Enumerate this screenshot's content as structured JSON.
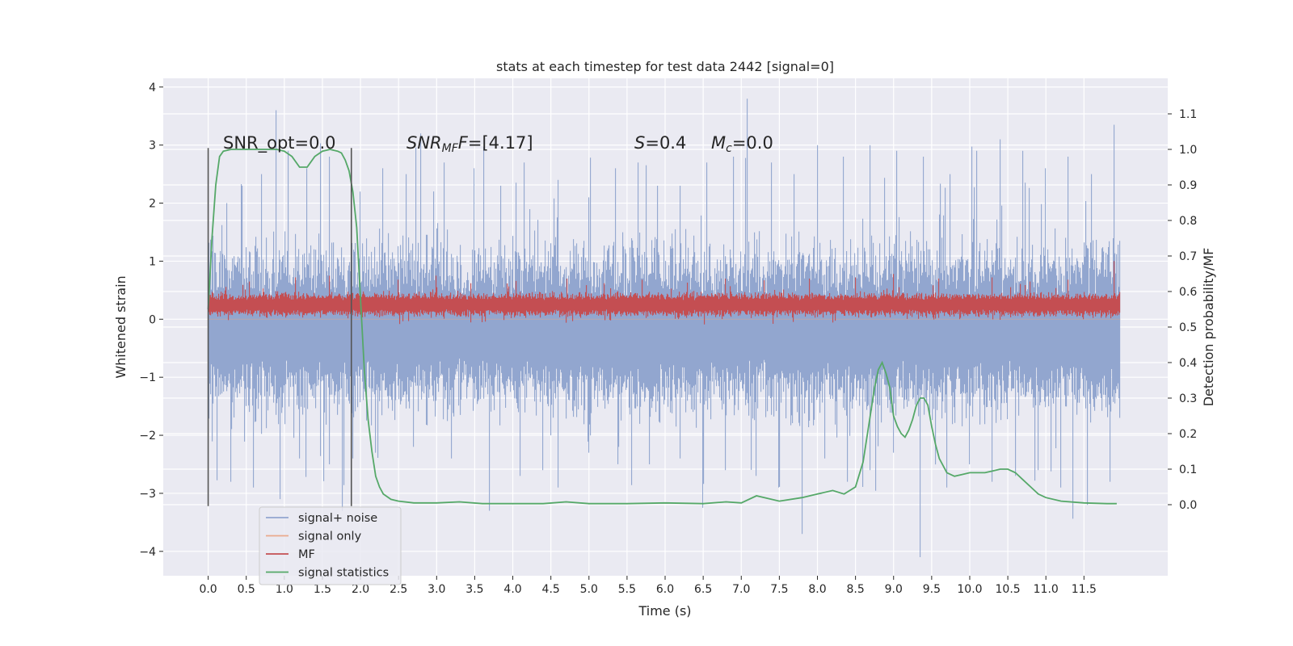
{
  "chart_data": {
    "type": "line",
    "title": "stats at each timestep for test data 2442 [signal=0]",
    "xlabel": "Time (s)",
    "ylabel": "Whitened strain",
    "ylabel_right": "Detection probability/MF",
    "xlim": [
      -0.59,
      12.6
    ],
    "ylim": [
      -4.42,
      4.15
    ],
    "ylim_right": [
      -0.2,
      1.2
    ],
    "x_ticks": [
      "0.0",
      "0.5",
      "1.0",
      "1.5",
      "2.0",
      "2.5",
      "3.0",
      "3.5",
      "4.0",
      "4.5",
      "5.0",
      "5.5",
      "6.0",
      "6.5",
      "7.0",
      "7.5",
      "8.0",
      "8.5",
      "9.0",
      "9.5",
      "10.0",
      "10.5",
      "11.0",
      "11.5"
    ],
    "y_ticks": [
      "−4",
      "−3",
      "−2",
      "−1",
      "0",
      "1",
      "2",
      "3",
      "4"
    ],
    "y_ticks_right": [
      "0.0",
      "0.1",
      "0.2",
      "0.3",
      "0.4",
      "0.5",
      "0.6",
      "0.7",
      "0.8",
      "0.9",
      "1.0",
      "1.1"
    ],
    "grid": true,
    "legend_position": "bottom-left",
    "annotations": {
      "snr_opt": "SNR_opt=0.0",
      "snr_mf_italic": "SNR",
      "snr_mf_sub": "MF",
      "snr_mf_value": "=[4.17]",
      "s_italic": "S",
      "s_value": "=0.4",
      "mc_italic": "M",
      "mc_sub": "c",
      "mc_value": "=0.0"
    },
    "markers": [
      {
        "x": 0.0,
        "y_range": [
          -3.22,
          2.95
        ]
      },
      {
        "x": 1.88,
        "y_range": [
          -3.22,
          2.95
        ]
      }
    ],
    "series": [
      {
        "name": "signal+ noise",
        "color": "#92a6cf",
        "axis": "left",
        "description_values": "dense noise roughly between -1.6 and 1.1 with spikes",
        "band": {
          "x_start": 0.0,
          "x_end": 11.98,
          "typical_low": -1.45,
          "typical_high": 1.1
        },
        "spikes": [
          [
            0.25,
            2.0
          ],
          [
            0.45,
            2.3
          ],
          [
            0.7,
            2.5
          ],
          [
            0.9,
            3.6
          ],
          [
            1.05,
            2.9
          ],
          [
            1.3,
            2.6
          ],
          [
            1.6,
            2.8
          ],
          [
            2.0,
            2.2
          ],
          [
            2.3,
            2.6
          ],
          [
            2.6,
            2.5
          ],
          [
            2.8,
            3.2
          ],
          [
            3.1,
            2.7
          ],
          [
            3.5,
            2.6
          ],
          [
            3.85,
            2.3
          ],
          [
            4.15,
            2.7
          ],
          [
            4.6,
            2.4
          ],
          [
            5.0,
            2.1
          ],
          [
            5.35,
            2.6
          ],
          [
            5.65,
            2.7
          ],
          [
            5.9,
            2.3
          ],
          [
            6.2,
            2.3
          ],
          [
            6.55,
            2.7
          ],
          [
            6.9,
            2.8
          ],
          [
            7.08,
            3.8
          ],
          [
            7.4,
            2.7
          ],
          [
            7.7,
            2.5
          ],
          [
            8.0,
            3.0
          ],
          [
            8.35,
            2.8
          ],
          [
            8.7,
            3.0
          ],
          [
            9.05,
            2.9
          ],
          [
            9.4,
            2.8
          ],
          [
            9.75,
            2.5
          ],
          [
            10.1,
            2.9
          ],
          [
            10.4,
            3.1
          ],
          [
            10.7,
            2.9
          ],
          [
            11.0,
            2.6
          ],
          [
            11.3,
            2.8
          ],
          [
            11.6,
            2.5
          ],
          [
            11.9,
            3.35
          ],
          [
            0.3,
            -2.8
          ],
          [
            0.6,
            -2.9
          ],
          [
            0.95,
            -3.1
          ],
          [
            1.2,
            -2.4
          ],
          [
            1.6,
            -2.5
          ],
          [
            1.9,
            -2.4
          ],
          [
            2.2,
            -2.3
          ],
          [
            2.7,
            -2.2
          ],
          [
            3.2,
            -2.4
          ],
          [
            3.7,
            -3.3
          ],
          [
            4.1,
            -2.7
          ],
          [
            4.4,
            -2.6
          ],
          [
            4.6,
            -2.9
          ],
          [
            5.0,
            -2.3
          ],
          [
            5.4,
            -2.2
          ],
          [
            5.8,
            -2.5
          ],
          [
            6.2,
            -2.4
          ],
          [
            6.5,
            -3.25
          ],
          [
            6.8,
            -2.6
          ],
          [
            7.2,
            -2.7
          ],
          [
            7.5,
            -2.9
          ],
          [
            7.8,
            -3.7
          ],
          [
            8.1,
            -2.4
          ],
          [
            8.4,
            -2.8
          ],
          [
            8.7,
            -2.6
          ],
          [
            9.0,
            -2.3
          ],
          [
            9.35,
            -4.1
          ],
          [
            9.7,
            -2.9
          ],
          [
            10.0,
            -2.5
          ],
          [
            10.3,
            -2.8
          ],
          [
            10.6,
            -2.7
          ],
          [
            10.9,
            -2.6
          ],
          [
            11.2,
            -2.9
          ],
          [
            11.55,
            -3.2
          ],
          [
            11.85,
            -2.8
          ]
        ]
      },
      {
        "name": "signal only",
        "color": "#eaa98b",
        "axis": "left",
        "values_note": "zero signal",
        "x": [
          0.0,
          11.98
        ],
        "y": [
          0.0,
          0.0
        ]
      },
      {
        "name": "MF",
        "color": "#c44e52",
        "axis": "left",
        "band": {
          "x_start": 0.0,
          "x_end": 11.98,
          "typical_low": 0.05,
          "typical_high": 0.45
        },
        "spikes": [
          [
            0.55,
            0.65
          ],
          [
            1.15,
            0.72
          ],
          [
            1.6,
            0.75
          ],
          [
            2.5,
            0.68
          ],
          [
            3.0,
            0.75
          ],
          [
            3.45,
            0.62
          ],
          [
            4.05,
            0.66
          ],
          [
            4.72,
            0.7
          ],
          [
            5.2,
            0.62
          ],
          [
            5.7,
            0.68
          ],
          [
            6.3,
            0.63
          ],
          [
            6.8,
            0.7
          ],
          [
            7.3,
            0.67
          ],
          [
            7.9,
            0.7
          ],
          [
            8.5,
            0.72
          ],
          [
            9.0,
            0.78
          ],
          [
            9.6,
            0.7
          ],
          [
            10.3,
            0.72
          ],
          [
            10.8,
            0.65
          ],
          [
            11.3,
            0.68
          ],
          [
            11.9,
            1.0
          ]
        ]
      },
      {
        "name": "signal statistics",
        "color": "#55a868",
        "axis": "right",
        "x": [
          0.0,
          0.05,
          0.1,
          0.15,
          0.2,
          0.3,
          0.5,
          0.7,
          0.9,
          1.0,
          1.1,
          1.2,
          1.3,
          1.4,
          1.5,
          1.6,
          1.7,
          1.75,
          1.8,
          1.85,
          1.9,
          1.95,
          2.0,
          2.05,
          2.1,
          2.15,
          2.2,
          2.25,
          2.3,
          2.4,
          2.5,
          2.7,
          3.0,
          3.3,
          3.6,
          4.0,
          4.4,
          4.7,
          5.0,
          5.5,
          6.0,
          6.5,
          6.8,
          7.0,
          7.2,
          7.5,
          7.8,
          8.0,
          8.2,
          8.35,
          8.5,
          8.6,
          8.7,
          8.75,
          8.8,
          8.85,
          8.9,
          8.95,
          9.0,
          9.05,
          9.1,
          9.15,
          9.2,
          9.25,
          9.3,
          9.35,
          9.4,
          9.45,
          9.5,
          9.55,
          9.6,
          9.7,
          9.8,
          9.9,
          10.0,
          10.1,
          10.2,
          10.3,
          10.4,
          10.5,
          10.6,
          10.7,
          10.8,
          10.9,
          11.0,
          11.2,
          11.5,
          11.8,
          11.93
        ],
        "y": [
          0.55,
          0.75,
          0.9,
          0.98,
          0.995,
          1.0,
          1.0,
          1.0,
          1.0,
          0.995,
          0.98,
          0.95,
          0.95,
          0.98,
          0.995,
          1.0,
          0.995,
          0.99,
          0.97,
          0.94,
          0.88,
          0.78,
          0.58,
          0.38,
          0.24,
          0.15,
          0.08,
          0.05,
          0.03,
          0.015,
          0.01,
          0.005,
          0.005,
          0.008,
          0.003,
          0.003,
          0.003,
          0.008,
          0.003,
          0.003,
          0.005,
          0.003,
          0.008,
          0.005,
          0.025,
          0.01,
          0.02,
          0.03,
          0.04,
          0.03,
          0.05,
          0.12,
          0.26,
          0.33,
          0.38,
          0.4,
          0.37,
          0.33,
          0.25,
          0.22,
          0.2,
          0.19,
          0.21,
          0.24,
          0.28,
          0.3,
          0.3,
          0.28,
          0.22,
          0.17,
          0.13,
          0.09,
          0.08,
          0.085,
          0.09,
          0.09,
          0.09,
          0.095,
          0.1,
          0.1,
          0.09,
          0.07,
          0.05,
          0.03,
          0.02,
          0.01,
          0.005,
          0.003,
          0.003
        ]
      }
    ]
  }
}
